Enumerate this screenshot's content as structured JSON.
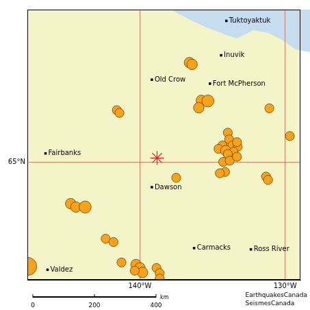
{
  "chart_data": {
    "type": "map",
    "xlim": [
      -147.75,
      -128.95
    ],
    "ylim": [
      61.13,
      70.0
    ],
    "xticks": [
      {
        "value": -140,
        "label": "140°W"
      },
      {
        "value": -130,
        "label": "130°W"
      }
    ],
    "yticks": [
      {
        "value": 65,
        "label": "65°N"
      }
    ],
    "grid": true,
    "places": [
      {
        "name": "Tuktoyaktuk",
        "x": -134.05,
        "y": 69.63
      },
      {
        "name": "Inuvik",
        "x": -134.41,
        "y": 68.5
      },
      {
        "name": "Old Crow",
        "x": -139.18,
        "y": 67.7
      },
      {
        "name": "Fort McPherson",
        "x": -135.18,
        "y": 67.57
      },
      {
        "name": "Fairbanks",
        "x": -146.5,
        "y": 65.28
      },
      {
        "name": "Dawson",
        "x": -139.18,
        "y": 64.17
      },
      {
        "name": "Carmacks",
        "x": -136.27,
        "y": 62.17
      },
      {
        "name": "Ross River",
        "x": -132.36,
        "y": 62.13
      },
      {
        "name": "Valdez",
        "x": -146.36,
        "y": 61.46
      }
    ],
    "epicentre": {
      "x": -138.82,
      "y": 65.13,
      "marker": "star",
      "color": "#e8201c"
    },
    "earthquakes": {
      "color": "#f7a21b",
      "x": [
        -147.73,
        -144.77,
        -144.41,
        -143.77,
        -142.36,
        -141.82,
        -141.27,
        -140.27,
        -140.0,
        -139.82,
        -140.36,
        -138.86,
        -138.64,
        -138.64,
        -141.59,
        -141.41,
        -137.5,
        -136.59,
        -136.41,
        -135.77,
        -135.32,
        -135.95,
        -131.09,
        -129.68,
        -133.95,
        -133.86,
        -134.32,
        -133.64,
        -133.27,
        -134.59,
        -134.09,
        -133.55,
        -133.95,
        -133.32,
        -134.27,
        -133.82,
        -134.14,
        -133.32,
        -134.5,
        -131.32,
        -131.18
      ],
      "y": [
        61.57,
        63.63,
        63.52,
        63.52,
        62.48,
        62.37,
        61.7,
        61.63,
        61.52,
        61.37,
        61.43,
        61.52,
        61.35,
        61.17,
        66.7,
        66.61,
        64.48,
        68.26,
        68.2,
        67.02,
        67.0,
        66.78,
        66.76,
        65.85,
        65.96,
        65.74,
        65.54,
        65.54,
        65.5,
        65.43,
        65.37,
        65.33,
        65.26,
        65.65,
        65.0,
        65.04,
        64.67,
        65.17,
        64.63,
        64.52,
        64.41
      ],
      "magnitude": [
        6.0,
        3.5,
        3.5,
        4.0,
        3.0,
        3.0,
        3.0,
        3.5,
        3.5,
        3.5,
        3.0,
        3.0,
        3.0,
        3.0,
        3.0,
        3.0,
        3.0,
        3.5,
        3.5,
        3.5,
        4.0,
        3.5,
        3.0,
        3.0,
        3.0,
        3.0,
        3.0,
        3.0,
        3.0,
        3.0,
        3.5,
        3.0,
        3.0,
        3.0,
        3.0,
        3.0,
        3.0,
        3.0,
        3.0,
        3.0,
        3.0
      ]
    },
    "scale_bar": {
      "ticks": [
        0,
        200,
        400
      ],
      "unit": "km"
    },
    "credits": [
      "EarthquakesCanada",
      "SeismesCanada"
    ]
  }
}
